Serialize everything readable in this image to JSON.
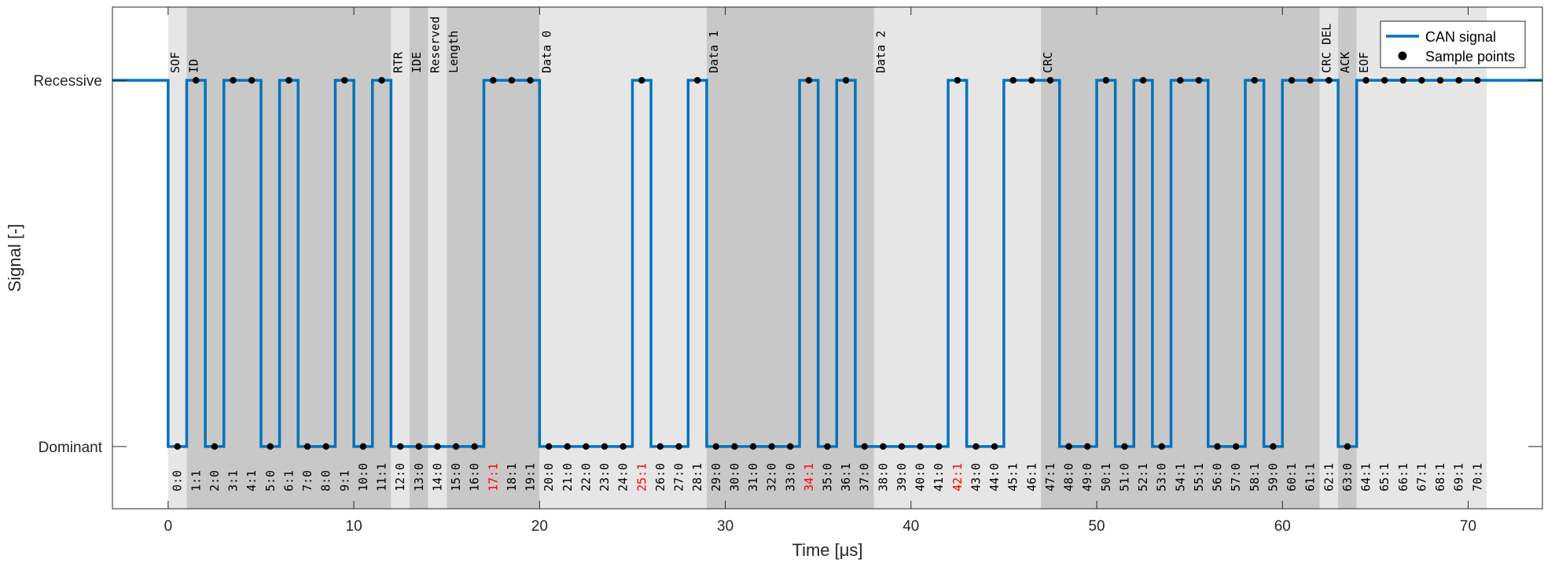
{
  "chart_data": {
    "type": "line",
    "xlabel": "Time [μs]",
    "ylabel": "Signal [-]",
    "xlim": [
      -3,
      74
    ],
    "ylim": [
      -0.17,
      1.2
    ],
    "xticks": [
      0,
      10,
      20,
      30,
      40,
      50,
      60,
      70
    ],
    "yticks": [
      {
        "value": 0,
        "label": "Dominant"
      },
      {
        "value": 1,
        "label": "Recessive"
      }
    ],
    "grid": false,
    "legend_position": "top-right",
    "legend": [
      {
        "label": "CAN signal",
        "kind": "line"
      },
      {
        "label": "Sample points",
        "kind": "marker"
      }
    ],
    "colors": {
      "signal": "#0072BD",
      "points": "#000000",
      "segment_light": "#e6e6e6",
      "segment_dark": "#c8c8c8",
      "stuff_bit": "#ff0000"
    },
    "segments": [
      {
        "name": "SOF",
        "start": 0,
        "end": 1,
        "shade": "light"
      },
      {
        "name": "ID",
        "start": 1,
        "end": 12,
        "shade": "dark"
      },
      {
        "name": "RTR",
        "start": 12,
        "end": 13,
        "shade": "light"
      },
      {
        "name": "IDE",
        "start": 13,
        "end": 14,
        "shade": "dark"
      },
      {
        "name": "Reserved",
        "start": 14,
        "end": 15,
        "shade": "light"
      },
      {
        "name": "Length",
        "start": 15,
        "end": 20,
        "shade": "dark"
      },
      {
        "name": "Data 0",
        "start": 20,
        "end": 29,
        "shade": "light"
      },
      {
        "name": "Data 1",
        "start": 29,
        "end": 38,
        "shade": "dark"
      },
      {
        "name": "Data 2",
        "start": 38,
        "end": 47,
        "shade": "light"
      },
      {
        "name": "CRC",
        "start": 47,
        "end": 62,
        "shade": "dark"
      },
      {
        "name": "CRC DEL",
        "start": 62,
        "end": 63,
        "shade": "light"
      },
      {
        "name": "ACK",
        "start": 63,
        "end": 64,
        "shade": "dark"
      },
      {
        "name": "EOF",
        "start": 64,
        "end": 71,
        "shade": "light"
      }
    ],
    "bits": [
      0,
      1,
      0,
      1,
      1,
      0,
      1,
      0,
      0,
      1,
      0,
      1,
      0,
      0,
      0,
      0,
      0,
      1,
      1,
      1,
      0,
      0,
      0,
      0,
      0,
      1,
      0,
      0,
      1,
      0,
      0,
      0,
      0,
      0,
      1,
      0,
      1,
      0,
      0,
      0,
      0,
      0,
      1,
      0,
      0,
      1,
      1,
      1,
      0,
      0,
      1,
      0,
      1,
      0,
      1,
      1,
      0,
      0,
      1,
      0,
      1,
      1,
      1,
      0,
      1,
      1,
      1,
      1,
      1,
      1,
      1
    ],
    "bit_labels": [
      "0:0",
      "1:1",
      "2:0",
      "3:1",
      "4:1",
      "5:0",
      "6:1",
      "7:0",
      "8:0",
      "9:1",
      "10:0",
      "11:1",
      "12:0",
      "13:0",
      "14:0",
      "15:0",
      "16:0",
      "17:1",
      "18:1",
      "19:1",
      "20:0",
      "21:0",
      "22:0",
      "23:0",
      "24:0",
      "25:1",
      "26:0",
      "27:0",
      "28:1",
      "29:0",
      "30:0",
      "31:0",
      "32:0",
      "33:0",
      "34:1",
      "35:0",
      "36:1",
      "37:0",
      "38:0",
      "39:0",
      "40:0",
      "41:0",
      "42:1",
      "43:0",
      "44:0",
      "45:1",
      "46:1",
      "47:1",
      "48:0",
      "49:0",
      "50:1",
      "51:0",
      "52:1",
      "53:0",
      "54:1",
      "55:1",
      "56:0",
      "57:0",
      "58:1",
      "59:0",
      "60:1",
      "61:1",
      "62:1",
      "63:0",
      "64:1",
      "65:1",
      "66:1",
      "67:1",
      "68:1",
      "69:1",
      "70:1"
    ],
    "stuff_bits": [
      17,
      25,
      34,
      42
    ],
    "sample_offset": 0.5
  }
}
